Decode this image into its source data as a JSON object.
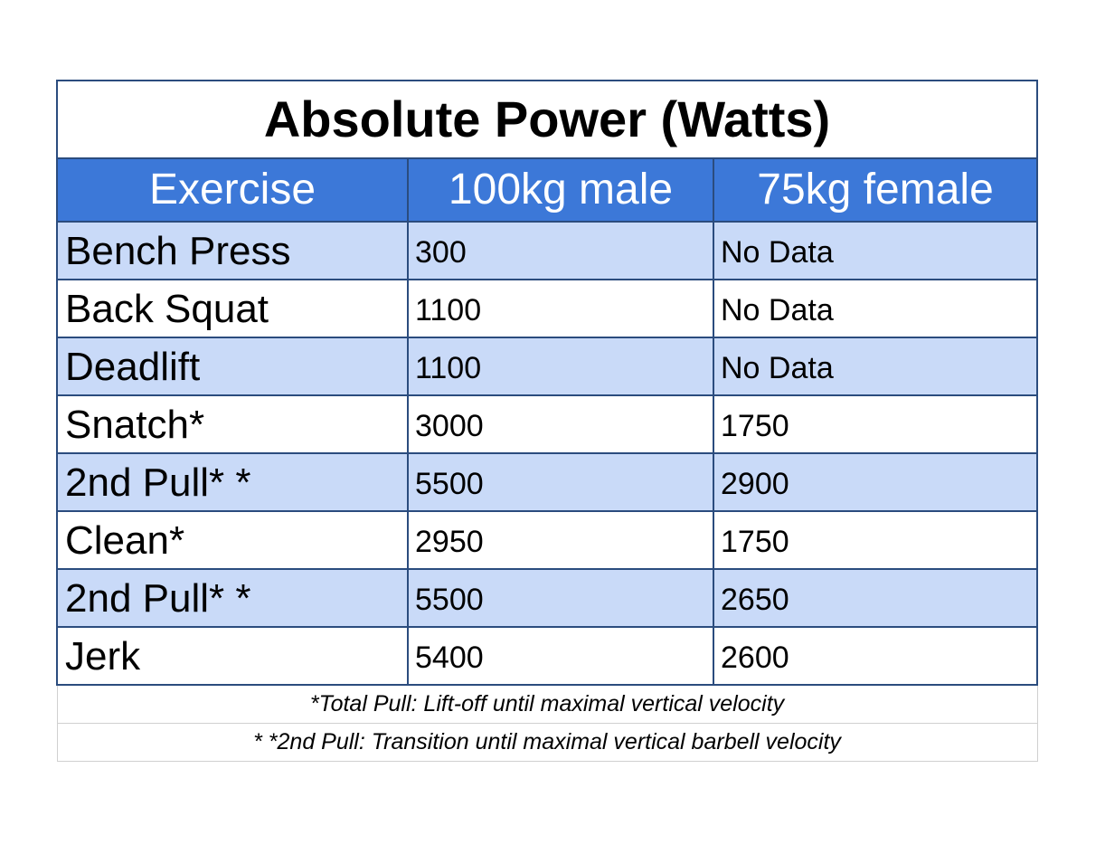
{
  "chart_data": {
    "type": "table",
    "title": "Absolute Power (Watts)",
    "columns": [
      "Exercise",
      "100kg male",
      "75kg female"
    ],
    "rows": [
      {
        "exercise": "Bench Press",
        "male_100kg": "300",
        "female_75kg": "No Data"
      },
      {
        "exercise": "Back Squat",
        "male_100kg": "1100",
        "female_75kg": "No Data"
      },
      {
        "exercise": "Deadlift",
        "male_100kg": "1100",
        "female_75kg": "No Data"
      },
      {
        "exercise": "Snatch*",
        "male_100kg": "3000",
        "female_75kg": "1750"
      },
      {
        "exercise": "2nd Pull* *",
        "male_100kg": "5500",
        "female_75kg": "2900"
      },
      {
        "exercise": "Clean*",
        "male_100kg": "2950",
        "female_75kg": "1750"
      },
      {
        "exercise": "2nd Pull* *",
        "male_100kg": "5500",
        "female_75kg": "2650"
      },
      {
        "exercise": "Jerk",
        "male_100kg": "5400",
        "female_75kg": "2600"
      }
    ],
    "notes": [
      "*Total Pull: Lift-off until maximal vertical velocity",
      "* *2nd Pull: Transition until maximal vertical barbell velocity"
    ]
  },
  "colors": {
    "header_bg": "#3c78d8",
    "shaded_row_bg": "#c9daf8",
    "border": "#2b4c7e"
  }
}
